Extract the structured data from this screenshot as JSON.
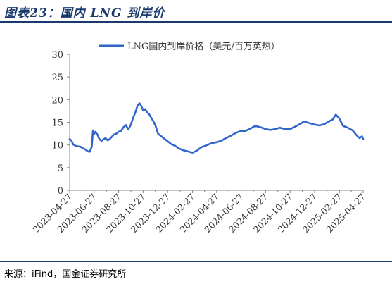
{
  "figure_title": "图表23：国内 LNG 到岸价",
  "source": "来源：iFind，国金证券研究所",
  "chart_data": {
    "type": "line",
    "title": "",
    "xlabel": "",
    "ylabel": "",
    "ylim": [
      0,
      30
    ],
    "yticks": [
      0,
      5,
      10,
      15,
      20,
      25,
      30
    ],
    "legend_position": "top-center",
    "grid": false,
    "x_tick_labels": [
      "2023-04-27",
      "2023-06-27",
      "2023-08-27",
      "2023-10-27",
      "2023-12-27",
      "2024-02-27",
      "2024-04-27",
      "2024-06-27",
      "2024-08-27",
      "2024-10-27",
      "2024-12-27",
      "2025-02-27",
      "2025-04-27"
    ],
    "series": [
      {
        "name": "LNG国内到岸价格（美元/百万英热）",
        "color": "#3366cc",
        "x": [
          "2023-04-27",
          "2023-05-01",
          "2023-05-06",
          "2023-05-12",
          "2023-05-18",
          "2023-05-24",
          "2023-05-30",
          "2023-06-05",
          "2023-06-11",
          "2023-06-16",
          "2023-06-21",
          "2023-06-24",
          "2023-06-27",
          "2023-06-30",
          "2023-07-05",
          "2023-07-10",
          "2023-07-15",
          "2023-07-20",
          "2023-07-25",
          "2023-07-31",
          "2023-08-05",
          "2023-08-10",
          "2023-08-15",
          "2023-08-20",
          "2023-08-27",
          "2023-09-02",
          "2023-09-08",
          "2023-09-14",
          "2023-09-20",
          "2023-09-26",
          "2023-10-02",
          "2023-10-08",
          "2023-10-13",
          "2023-10-18",
          "2023-10-23",
          "2023-10-27",
          "2023-11-01",
          "2023-11-06",
          "2023-11-11",
          "2023-11-16",
          "2023-11-21",
          "2023-11-27",
          "2023-12-03",
          "2023-12-10",
          "2023-12-17",
          "2023-12-27",
          "2024-01-05",
          "2024-01-15",
          "2024-01-25",
          "2024-02-05",
          "2024-02-15",
          "2024-02-27",
          "2024-03-08",
          "2024-03-20",
          "2024-04-01",
          "2024-04-15",
          "2024-04-27",
          "2024-05-08",
          "2024-05-20",
          "2024-06-01",
          "2024-06-15",
          "2024-06-27",
          "2024-07-08",
          "2024-07-20",
          "2024-08-01",
          "2024-08-15",
          "2024-08-27",
          "2024-09-08",
          "2024-09-20",
          "2024-10-01",
          "2024-10-15",
          "2024-10-27",
          "2024-11-08",
          "2024-11-20",
          "2024-12-01",
          "2024-12-15",
          "2024-12-27",
          "2025-01-08",
          "2025-01-20",
          "2025-02-01",
          "2025-02-10",
          "2025-02-18",
          "2025-02-27",
          "2025-03-08",
          "2025-03-20",
          "2025-04-01",
          "2025-04-10",
          "2025-04-18",
          "2025-04-24",
          "2025-04-27"
        ],
        "values": [
          11.3,
          11.0,
          10.1,
          9.8,
          9.7,
          9.6,
          9.3,
          9.0,
          8.6,
          8.5,
          9.6,
          13.2,
          12.4,
          12.9,
          12.3,
          11.3,
          10.9,
          11.2,
          11.5,
          11.0,
          11.3,
          11.8,
          12.3,
          12.4,
          12.9,
          13.1,
          13.9,
          14.4,
          13.4,
          14.4,
          15.9,
          17.3,
          18.7,
          19.2,
          18.5,
          17.6,
          17.9,
          17.2,
          16.8,
          16.0,
          15.3,
          14.2,
          12.5,
          12.0,
          11.5,
          10.8,
          10.2,
          9.8,
          9.2,
          8.8,
          8.6,
          8.3,
          8.7,
          9.5,
          9.9,
          10.4,
          10.6,
          10.9,
          11.5,
          12.0,
          12.7,
          13.1,
          13.1,
          13.6,
          14.2,
          13.9,
          13.5,
          13.3,
          13.5,
          13.8,
          13.5,
          13.5,
          14.0,
          14.6,
          15.2,
          14.8,
          14.5,
          14.3,
          14.6,
          15.2,
          15.6,
          16.7,
          15.8,
          14.2,
          13.8,
          13.2,
          12.2,
          11.5,
          11.9,
          11.3
        ]
      }
    ]
  }
}
